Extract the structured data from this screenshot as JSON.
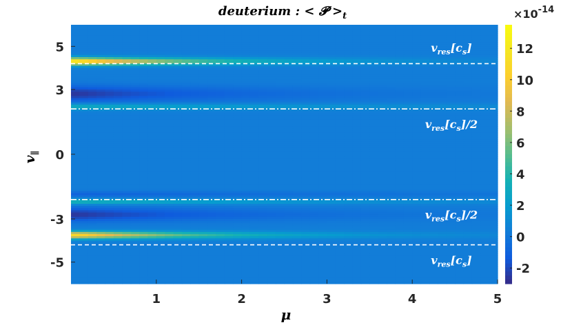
{
  "chart_data": {
    "type": "heatmap",
    "title": "deuterium : < 𝓟 >ₜ",
    "xlabel": "μ",
    "ylabel": "v∥",
    "xlim": [
      0,
      5
    ],
    "ylim": [
      -6,
      6
    ],
    "xticks": [
      1,
      2,
      3,
      4,
      5
    ],
    "yticks": [
      5,
      3,
      0,
      -3,
      -5
    ],
    "colorbar": {
      "clim": [
        -3,
        13.5
      ],
      "ticks": [
        -2,
        0,
        2,
        4,
        6,
        8,
        10,
        12
      ],
      "multiplier": "×10",
      "exponent": "-14",
      "colormap": "parula"
    },
    "background_value": 0.3,
    "bands": [
      {
        "v": 4.3,
        "peak": 12.8,
        "decay": 1.5,
        "width": 0.17
      },
      {
        "v": 2.2,
        "peak": 3.0,
        "decay": 3.5,
        "width": 0.14
      },
      {
        "v": 2.8,
        "peak": -3.0,
        "decay": 2.0,
        "width": 0.35
      },
      {
        "v": -1.85,
        "peak": -1.3,
        "decay": 4.0,
        "width": 0.13
      },
      {
        "v": -2.2,
        "peak": 3.5,
        "decay": 3.0,
        "width": 0.12
      },
      {
        "v": -2.8,
        "peak": -3.0,
        "decay": 2.0,
        "width": 0.3
      },
      {
        "v": -3.75,
        "peak": 11.0,
        "decay": 1.6,
        "width": 0.16
      }
    ],
    "reference_lines": [
      {
        "v": 4.2,
        "style": "dashed",
        "label": "v_res[c_s]",
        "label_v": 4.95
      },
      {
        "v": 2.1,
        "style": "dashdot",
        "label": "v_res[c_s]/2",
        "label_v": 1.4
      },
      {
        "v": -2.1,
        "style": "dashdot",
        "label": "v_res[c_s]/2",
        "label_v": -2.8
      },
      {
        "v": -4.2,
        "style": "dashed",
        "label": "v_res[c_s]",
        "label_v": -4.9
      }
    ]
  }
}
